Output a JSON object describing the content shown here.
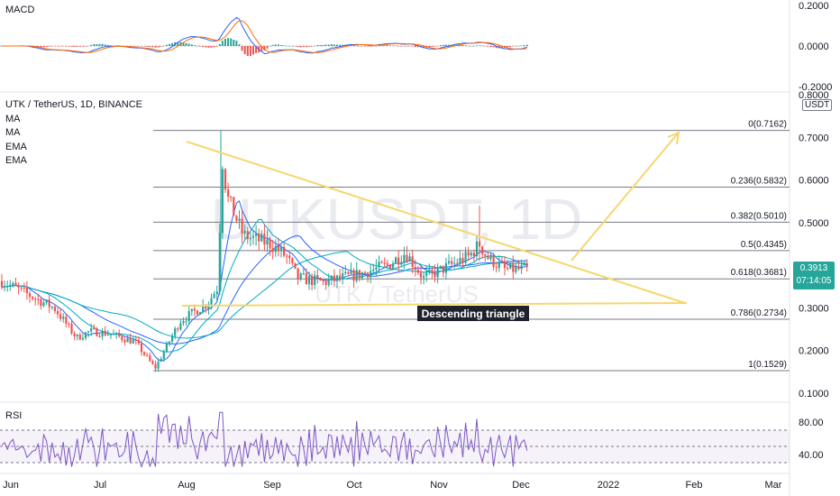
{
  "symbol": {
    "title": "UTK / TetherUS, 1D, BINANCE",
    "indicators": [
      "MA",
      "MA",
      "EMA",
      "EMA"
    ],
    "watermark_main": "UTKUSDT, 1D",
    "watermark_sub": "UTK / TetherUS",
    "unit": "USDT"
  },
  "price_badge": {
    "price": "0.3913",
    "countdown": "07:14:05"
  },
  "panes": {
    "macd_label": "MACD",
    "rsi_label": "RSI"
  },
  "pattern_label": "Descending triangle",
  "colors": {
    "up": "#26a69a",
    "down": "#ef5350",
    "fib_line": "#787b86",
    "triangle": "#f5d76e",
    "ma_blue": "#2962ff",
    "ma_teal": "#00acc1",
    "rsi": "#7e57c2",
    "macd": "#2962ff",
    "signal": "#ff6d00"
  },
  "chart_data": [
    {
      "type": "candlestick",
      "title": "UTK / TetherUS, 1D, BINANCE",
      "x_ticks": [
        "Jun",
        "Jul",
        "Aug",
        "Sep",
        "Oct",
        "Nov",
        "Dec",
        "2022",
        "Feb",
        "Mar"
      ],
      "y_ticks": [
        "0.8000",
        "0.7000",
        "0.6000",
        "0.5000",
        "0.4000",
        "0.3000",
        "0.2000",
        "0.1000"
      ],
      "ylim": [
        0.1,
        0.8
      ],
      "last_price": 0.3913,
      "fibonacci": [
        {
          "label": "0(0.7162)",
          "value": 0.7162
        },
        {
          "label": "0.236(0.5832)",
          "value": 0.5832
        },
        {
          "label": "0.382(0.5010)",
          "value": 0.501
        },
        {
          "label": "0.5(0.4345)",
          "value": 0.4345
        },
        {
          "label": "0.618(0.3681)",
          "value": 0.3681
        },
        {
          "label": "0.786(0.2734)",
          "value": 0.2734
        },
        {
          "label": "1(0.1529)",
          "value": 0.1529
        }
      ],
      "annotations": [
        "Descending triangle"
      ]
    },
    {
      "type": "line",
      "title": "MACD",
      "y_ticks": [
        "0.2000",
        "0.0000",
        "-0.2000"
      ],
      "ylim": [
        -0.2,
        0.2
      ]
    },
    {
      "type": "line",
      "title": "RSI",
      "y_ticks": [
        "80.00",
        "40.00"
      ],
      "ylim": [
        20,
        100
      ],
      "bands": [
        70,
        50,
        30
      ]
    }
  ]
}
